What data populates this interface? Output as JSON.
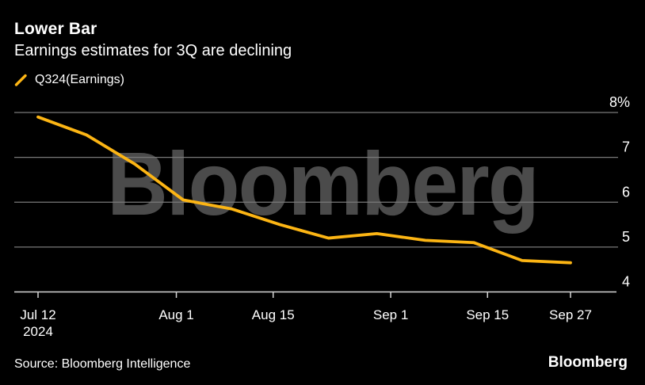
{
  "header": {
    "title": "Lower Bar",
    "subtitle": "Earnings estimates for 3Q are declining"
  },
  "legend": {
    "label": "Q324(Earnings)"
  },
  "watermark": "Bloomberg",
  "footer": {
    "source": "Source: Bloomberg Intelligence",
    "logo": "Bloomberg"
  },
  "colors": {
    "background": "#000000",
    "line": "#FCB514",
    "gridline": "#7a7a7a",
    "axis": "#d4d4d4",
    "tick": "#d4d4d4",
    "text": "#ffffff",
    "watermark": "#4b4b4b"
  },
  "chart_data": {
    "type": "line",
    "title": "Lower Bar",
    "subtitle": "Earnings estimates for 3Q are declining",
    "ylabel": "%",
    "ylim": [
      4,
      8
    ],
    "x_range_days": 77,
    "grid": "horizontal",
    "legend_position": "top-left",
    "series": [
      {
        "name": "Q324(Earnings)",
        "color": "#FCB514",
        "dates": [
          "Jul 12",
          "Jul 19",
          "Jul 26",
          "Aug 2",
          "Aug 9",
          "Aug 16",
          "Aug 23",
          "Aug 30",
          "Sep 6",
          "Sep 13",
          "Sep 20",
          "Sep 27"
        ],
        "x_days": [
          0,
          7,
          14,
          21,
          28,
          35,
          42,
          49,
          56,
          63,
          70,
          77
        ],
        "values": [
          7.9,
          7.5,
          6.85,
          6.05,
          5.85,
          5.5,
          5.2,
          5.3,
          5.15,
          5.1,
          4.7,
          4.65
        ]
      }
    ],
    "x_ticks": [
      {
        "label": "Jul 12",
        "sublabel": "2024",
        "day": 0
      },
      {
        "label": "Aug 1",
        "sublabel": "",
        "day": 20
      },
      {
        "label": "Aug 15",
        "sublabel": "",
        "day": 34
      },
      {
        "label": "Sep 1",
        "sublabel": "",
        "day": 51
      },
      {
        "label": "Sep 15",
        "sublabel": "",
        "day": 65
      },
      {
        "label": "Sep 27",
        "sublabel": "",
        "day": 77
      }
    ],
    "y_ticks": [
      {
        "label": "8%",
        "value": 8
      },
      {
        "label": "7",
        "value": 7
      },
      {
        "label": "6",
        "value": 6
      },
      {
        "label": "5",
        "value": 5
      },
      {
        "label": "4",
        "value": 4
      }
    ]
  }
}
